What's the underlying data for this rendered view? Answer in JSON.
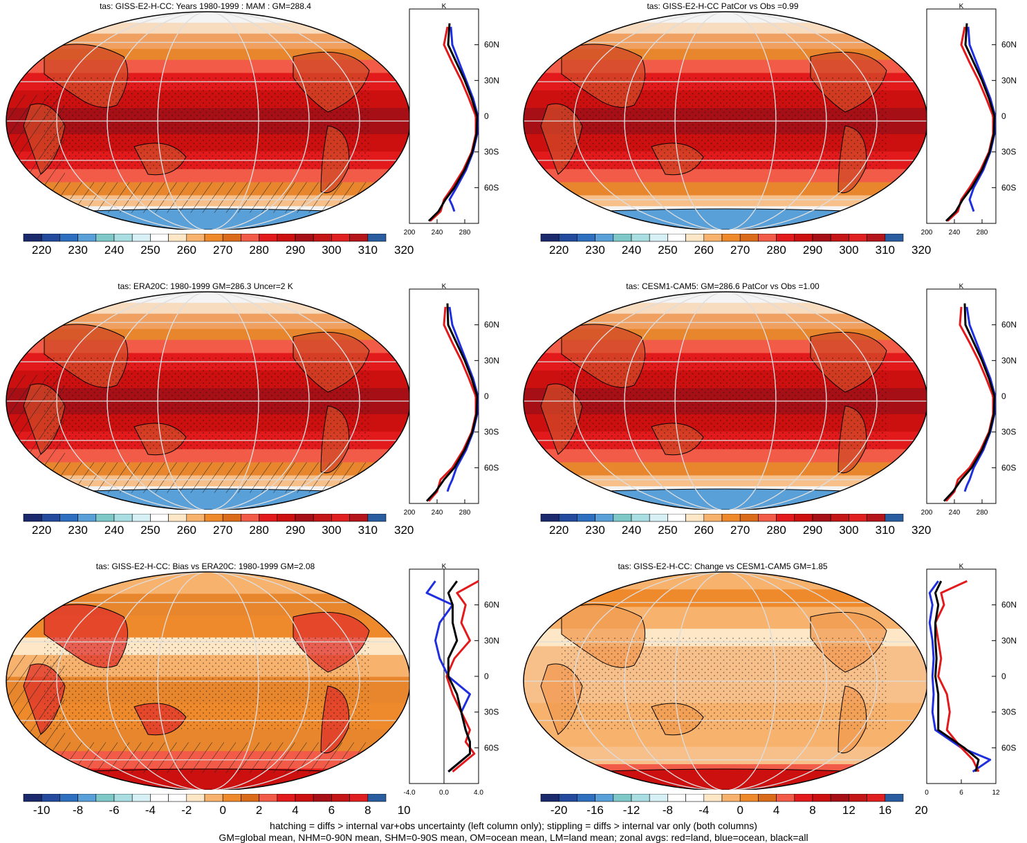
{
  "colors": {
    "mean_scale": [
      "#1a2a6c",
      "#234a9c",
      "#2e6fc0",
      "#5aa0d8",
      "#7fc8c8",
      "#a9dfe3",
      "#d7f0f5",
      "#ffffff",
      "#fde7c6",
      "#f7b26e",
      "#ef8a2c",
      "#d96b1b",
      "#f25b48",
      "#e31a1c",
      "#cc0f0f",
      "#a50f15",
      "#c41616",
      "#e02020",
      "#b3151b",
      "#2a5da0"
    ],
    "bias_scale": [
      "#1a2a6c",
      "#234a9c",
      "#2e6fc0",
      "#5aa0d8",
      "#7fc8c8",
      "#a9dfe3",
      "#d7f0f5",
      "#ffffff",
      "#fde7c6",
      "#f7b26e",
      "#ef8a2c",
      "#d96b1b",
      "#f25b48",
      "#e31a1c",
      "#cc0f0f",
      "#a50f15",
      "#c41616",
      "#e02020",
      "#b3151b",
      "#2a5da0"
    ],
    "land": "#e31a1c",
    "ocean": "#1f2fe0",
    "all": "#000000"
  },
  "panels": [
    {
      "title": "tas: GISS-E2-H-CC: Years 1980-1999 : MAM : GM=288.4",
      "map_type": "mean",
      "hatched": true,
      "colorbar_labels": [
        "220",
        "230",
        "240",
        "250",
        "260",
        "270",
        "280",
        "290",
        "300",
        "310",
        "320"
      ],
      "profile_xticks": [
        "200",
        "240",
        "280"
      ],
      "profile_unit": "K",
      "lat_labels": [
        "60N",
        "30N",
        "0",
        "30S",
        "60S"
      ]
    },
    {
      "title": "tas: GISS-E2-H-CC PatCor vs Obs =0.99",
      "map_type": "mean",
      "hatched": false,
      "colorbar_labels": [
        "220",
        "230",
        "240",
        "250",
        "260",
        "270",
        "280",
        "290",
        "300",
        "310",
        "320"
      ],
      "profile_xticks": [
        "200",
        "240",
        "280"
      ],
      "profile_unit": "K",
      "lat_labels": [
        "60N",
        "30N",
        "0",
        "30S",
        "60S"
      ]
    },
    {
      "title": "tas: ERA20C: 1980-1999 GM=286.3 Uncer=2 K",
      "map_type": "mean",
      "hatched": true,
      "colorbar_labels": [
        "220",
        "230",
        "240",
        "250",
        "260",
        "270",
        "280",
        "290",
        "300",
        "310",
        "320"
      ],
      "profile_xticks": [
        "200",
        "240",
        "280"
      ],
      "profile_unit": "K",
      "lat_labels": [
        "60N",
        "30N",
        "0",
        "30S",
        "60S"
      ]
    },
    {
      "title": "tas: CESM1-CAM5: GM=286.6 PatCor vs Obs =1.00",
      "map_type": "mean",
      "hatched": false,
      "colorbar_labels": [
        "220",
        "230",
        "240",
        "250",
        "260",
        "270",
        "280",
        "290",
        "300",
        "310",
        "320"
      ],
      "profile_xticks": [
        "200",
        "240",
        "280"
      ],
      "profile_unit": "K",
      "lat_labels": [
        "60N",
        "30N",
        "0",
        "30S",
        "60S"
      ]
    },
    {
      "title": "tas: GISS-E2-H-CC: Bias vs ERA20C: 1980-1999 GM=2.08",
      "map_type": "bias",
      "hatched": true,
      "colorbar_labels": [
        "-10",
        "-8",
        "-6",
        "-4",
        "-2",
        "0",
        "2",
        "4",
        "6",
        "8",
        "10"
      ],
      "profile_xticks": [
        "-4.0",
        "0.0",
        "4.0"
      ],
      "profile_unit": "K",
      "lat_labels": [
        "60N",
        "30N",
        "0",
        "30S",
        "60S"
      ]
    },
    {
      "title": "tas: GISS-E2-H-CC: Change vs CESM1-CAM5 GM=1.85",
      "map_type": "change",
      "hatched": false,
      "colorbar_labels": [
        "-20",
        "-16",
        "-12",
        "-8",
        "-4",
        "0",
        "4",
        "8",
        "12",
        "16",
        "20"
      ],
      "profile_xticks": [
        "0",
        "6",
        "12"
      ],
      "profile_unit": "K",
      "lat_labels": [
        "60N",
        "30N",
        "0",
        "30S",
        "60S"
      ]
    }
  ],
  "chart_data": [
    {
      "type": "line",
      "title": "tas: GISS-E2-H-CC: Years 1980-1999 : MAM : GM=288.4",
      "xlim": [
        200,
        300
      ],
      "ylabel": "",
      "xlabel": "K",
      "series": [
        {
          "name": "land",
          "x": [
            255,
            250,
            262,
            275,
            286,
            296,
            296,
            290,
            278,
            262,
            250,
            245,
            230
          ],
          "y": [
            75,
            60,
            45,
            30,
            15,
            0,
            -15,
            -30,
            -45,
            -60,
            -70,
            -80,
            -88
          ]
        },
        {
          "name": "ocean",
          "x": [
            260,
            262,
            272,
            282,
            292,
            299,
            298,
            292,
            282,
            268,
            258,
            262,
            265
          ],
          "y": [
            75,
            60,
            45,
            30,
            15,
            0,
            -15,
            -30,
            -45,
            -60,
            -70,
            -75,
            -80
          ]
        },
        {
          "name": "all",
          "x": [
            258,
            256,
            268,
            280,
            290,
            298,
            297,
            291,
            280,
            265,
            252,
            242,
            228
          ],
          "y": [
            78,
            60,
            45,
            30,
            15,
            0,
            -15,
            -30,
            -45,
            -60,
            -70,
            -80,
            -88
          ]
        }
      ]
    },
    {
      "type": "line",
      "title": "tas: GISS-E2-H-CC PatCor vs Obs =0.99",
      "xlim": [
        200,
        300
      ],
      "xlabel": "K",
      "series": [
        {
          "name": "land",
          "x": [
            255,
            250,
            262,
            275,
            286,
            296,
            296,
            290,
            278,
            262,
            250,
            245,
            230
          ],
          "y": [
            75,
            60,
            45,
            30,
            15,
            0,
            -15,
            -30,
            -45,
            -60,
            -70,
            -80,
            -88
          ]
        },
        {
          "name": "ocean",
          "x": [
            260,
            262,
            272,
            282,
            292,
            299,
            298,
            292,
            282,
            268,
            262,
            265,
            268
          ],
          "y": [
            75,
            60,
            45,
            30,
            15,
            0,
            -15,
            -30,
            -45,
            -60,
            -70,
            -75,
            -80
          ]
        },
        {
          "name": "all",
          "x": [
            258,
            256,
            268,
            280,
            290,
            298,
            297,
            291,
            280,
            265,
            252,
            242,
            228
          ],
          "y": [
            78,
            60,
            45,
            30,
            15,
            0,
            -15,
            -30,
            -45,
            -60,
            -70,
            -80,
            -88
          ]
        }
      ]
    },
    {
      "type": "line",
      "title": "tas: ERA20C: 1980-1999 GM=286.3 Uncer=2 K",
      "xlim": [
        200,
        300
      ],
      "xlabel": "K",
      "series": [
        {
          "name": "land",
          "x": [
            252,
            250,
            262,
            275,
            286,
            296,
            296,
            290,
            278,
            262,
            245,
            240,
            228
          ],
          "y": [
            75,
            60,
            45,
            30,
            15,
            0,
            -15,
            -30,
            -45,
            -60,
            -70,
            -80,
            -88
          ]
        },
        {
          "name": "ocean",
          "x": [
            258,
            262,
            272,
            282,
            292,
            299,
            298,
            292,
            282,
            268,
            262,
            258,
            255
          ],
          "y": [
            75,
            60,
            45,
            30,
            15,
            0,
            -15,
            -30,
            -45,
            -60,
            -70,
            -75,
            -80
          ]
        },
        {
          "name": "all",
          "x": [
            255,
            256,
            268,
            280,
            290,
            298,
            297,
            291,
            280,
            265,
            250,
            238,
            225
          ],
          "y": [
            78,
            60,
            45,
            30,
            15,
            0,
            -15,
            -30,
            -45,
            -60,
            -70,
            -80,
            -88
          ]
        }
      ]
    },
    {
      "type": "line",
      "title": "tas: CESM1-CAM5: GM=286.6 PatCor vs Obs =1.00",
      "xlim": [
        200,
        300
      ],
      "xlabel": "K",
      "series": [
        {
          "name": "land",
          "x": [
            250,
            248,
            262,
            275,
            286,
            296,
            296,
            290,
            278,
            262,
            245,
            240,
            228
          ],
          "y": [
            75,
            60,
            45,
            30,
            15,
            0,
            -15,
            -30,
            -45,
            -60,
            -70,
            -80,
            -88
          ]
        },
        {
          "name": "ocean",
          "x": [
            258,
            262,
            272,
            282,
            292,
            299,
            298,
            292,
            282,
            268,
            262,
            258,
            255
          ],
          "y": [
            75,
            60,
            45,
            30,
            15,
            0,
            -15,
            -30,
            -45,
            -60,
            -70,
            -75,
            -80
          ]
        },
        {
          "name": "all",
          "x": [
            255,
            256,
            268,
            280,
            290,
            298,
            297,
            291,
            280,
            265,
            250,
            238,
            225
          ],
          "y": [
            78,
            60,
            45,
            30,
            15,
            0,
            -15,
            -30,
            -45,
            -60,
            -70,
            -80,
            -88
          ]
        }
      ]
    },
    {
      "type": "line",
      "title": "tas: GISS-E2-H-CC: Bias vs ERA20C: 1980-1999 GM=2.08",
      "xlim": [
        -4,
        4
      ],
      "xlabel": "K",
      "series": [
        {
          "name": "land",
          "x": [
            4.0,
            1.5,
            2.5,
            2.0,
            3.0,
            1.2,
            0.3,
            1.0,
            2.0,
            3.0,
            2.5,
            3.5,
            1.0
          ],
          "y": [
            80,
            70,
            60,
            45,
            30,
            15,
            0,
            -15,
            -30,
            -45,
            -55,
            -65,
            -80
          ]
        },
        {
          "name": "ocean",
          "x": [
            -1.0,
            -2.0,
            1.0,
            -0.5,
            -1.0,
            -0.5,
            0.5,
            3.0,
            2.0,
            2.5,
            3.0,
            3.0,
            0.5
          ],
          "y": [
            80,
            70,
            60,
            45,
            30,
            15,
            0,
            -15,
            -30,
            -45,
            -55,
            -65,
            -80
          ]
        },
        {
          "name": "all",
          "x": [
            1.5,
            0.5,
            1.0,
            1.0,
            1.5,
            0.5,
            0.5,
            1.5,
            2.0,
            2.5,
            3.0,
            3.0,
            0.5
          ],
          "y": [
            80,
            70,
            60,
            45,
            30,
            15,
            0,
            -15,
            -30,
            -45,
            -55,
            -65,
            -80
          ]
        }
      ]
    },
    {
      "type": "line",
      "title": "tas: GISS-E2-H-CC: Change vs CESM1-CAM5 GM=1.85",
      "xlim": [
        0,
        12
      ],
      "xlabel": "K",
      "series": [
        {
          "name": "land",
          "x": [
            7.0,
            2.5,
            3.0,
            1.5,
            2.0,
            2.5,
            2.0,
            3.5,
            4.0,
            3.5,
            6.0,
            8.0,
            9.0
          ],
          "y": [
            80,
            70,
            60,
            45,
            30,
            15,
            0,
            -15,
            -30,
            -45,
            -60,
            -70,
            -80
          ]
        },
        {
          "name": "ocean",
          "x": [
            2.0,
            0.5,
            1.0,
            0.5,
            1.0,
            1.2,
            1.0,
            1.2,
            1.0,
            1.5,
            6.0,
            11.0,
            8.0
          ],
          "y": [
            80,
            70,
            60,
            45,
            30,
            15,
            0,
            -15,
            -30,
            -45,
            -60,
            -70,
            -80
          ]
        },
        {
          "name": "all",
          "x": [
            2.5,
            1.5,
            2.0,
            1.5,
            1.5,
            1.7,
            1.5,
            2.0,
            2.0,
            2.0,
            6.5,
            9.0,
            8.5
          ],
          "y": [
            80,
            70,
            60,
            45,
            30,
            15,
            0,
            -15,
            -30,
            -45,
            -60,
            -70,
            -80
          ]
        }
      ]
    }
  ],
  "footer": {
    "line1": "hatching = diffs > internal var+obs uncertainty (left column only); stippling = diffs > internal var only (both columns)",
    "line2": "GM=global mean, NHM=0-90N mean, SHM=0-90S mean, OM=ocean mean, LM=land mean; zonal avgs: red=land, blue=ocean, black=all"
  }
}
